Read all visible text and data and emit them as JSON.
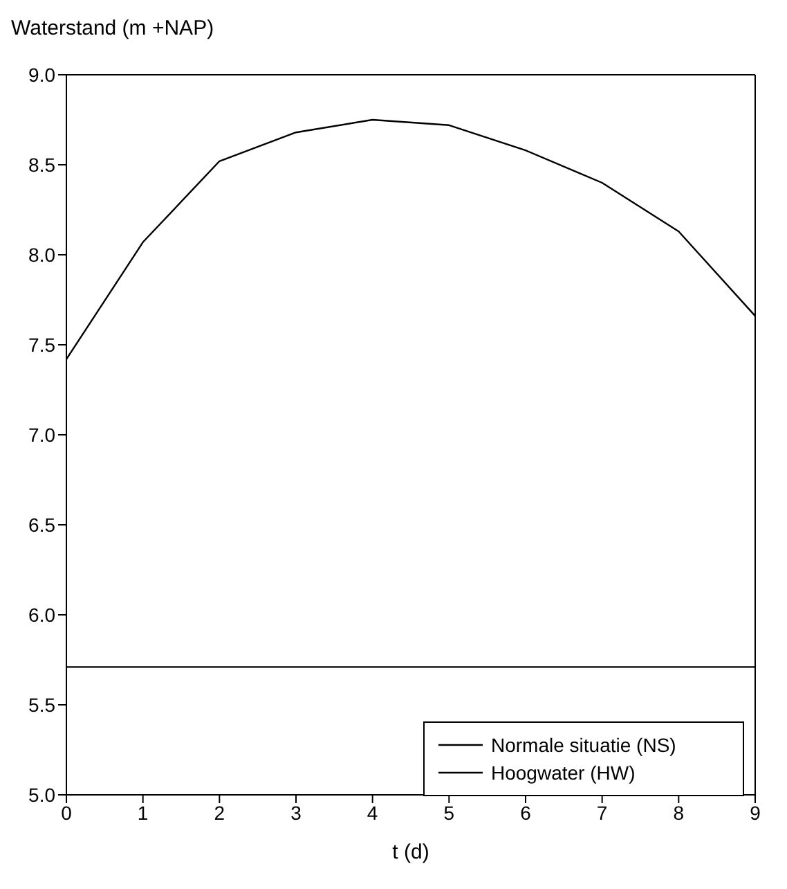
{
  "chart_data": {
    "type": "line",
    "ylabel": "Waterstand (m +NAP)",
    "xlabel": "t (d)",
    "x": [
      0,
      1,
      2,
      3,
      4,
      5,
      6,
      7,
      8,
      9
    ],
    "series": [
      {
        "name": "Normale situatie (NS)",
        "color": "#000000",
        "values": [
          5.71,
          5.71,
          5.71,
          5.71,
          5.71,
          5.71,
          5.71,
          5.71,
          5.71,
          5.71
        ]
      },
      {
        "name": "Hoogwater (HW)",
        "color": "#000000",
        "values": [
          7.42,
          8.07,
          8.52,
          8.68,
          8.75,
          8.72,
          8.58,
          8.4,
          8.13,
          7.66
        ]
      }
    ],
    "xlim": [
      0,
      9
    ],
    "xticks": [
      0,
      1,
      2,
      3,
      4,
      5,
      6,
      7,
      8,
      9
    ],
    "ylim": [
      5,
      9
    ],
    "yticks": [
      {
        "value": 5,
        "label": "5.0"
      },
      5.5,
      {
        "value": 6,
        "label": "6.0"
      },
      6.5,
      {
        "value": 7,
        "label": "7.0"
      },
      7.5,
      {
        "value": 8,
        "label": "8.0"
      },
      8.5,
      {
        "value": 9,
        "label": "9.0"
      }
    ],
    "grid": false,
    "legend": "bottom right",
    "marker": "none",
    "line_style": "solid"
  }
}
